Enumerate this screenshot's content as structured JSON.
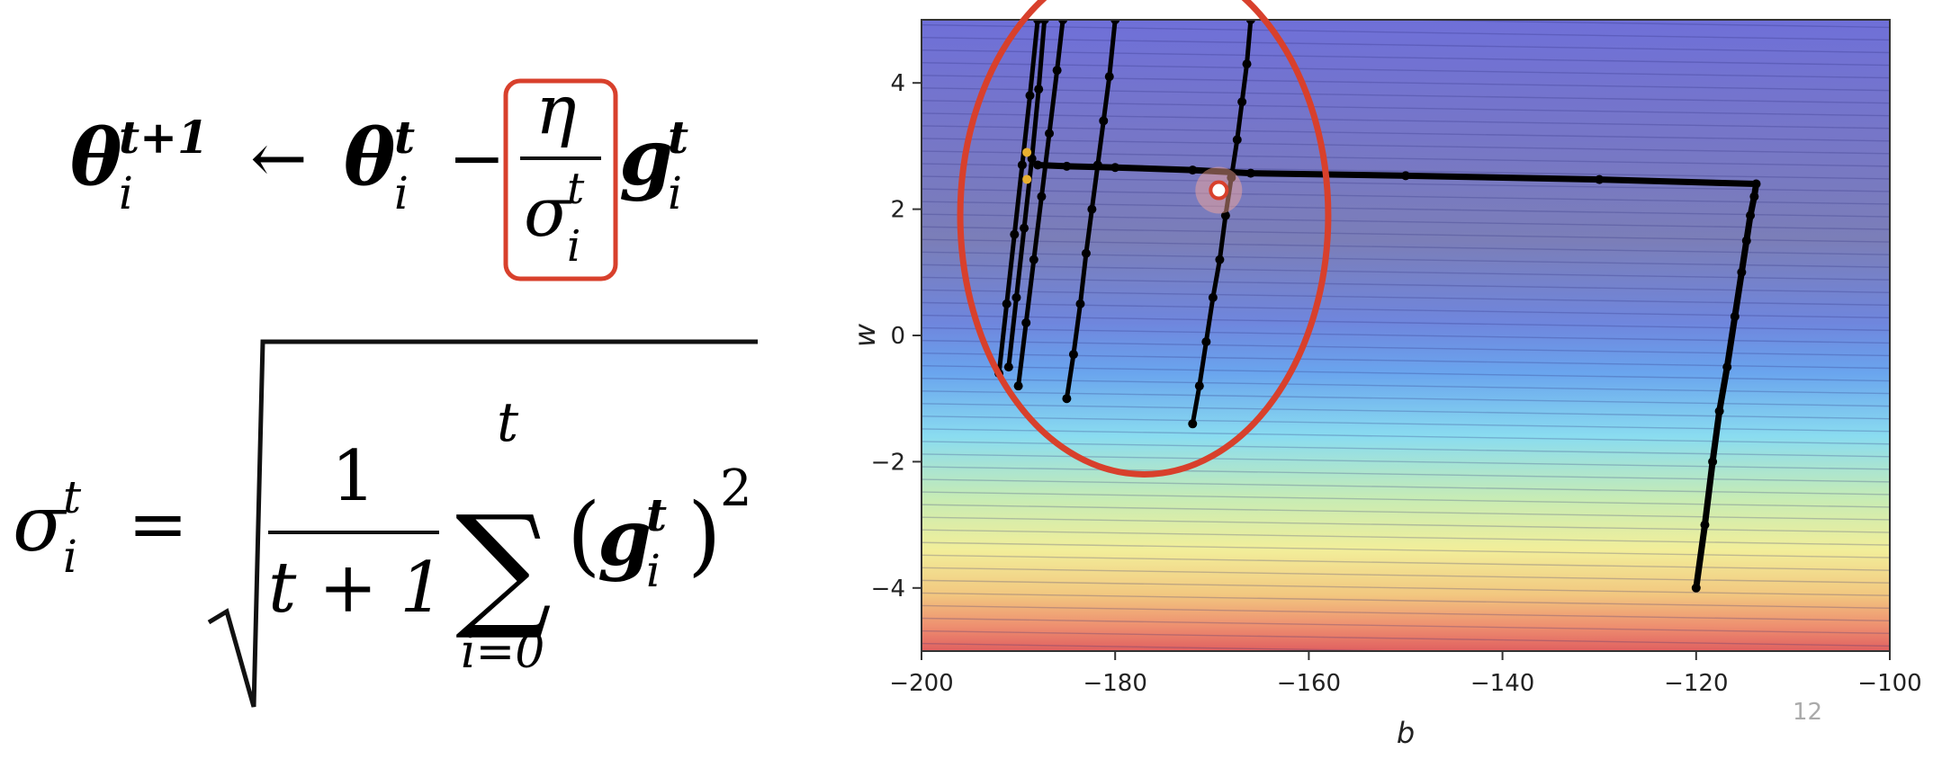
{
  "formula": {
    "theta": "θ",
    "arrow": "←",
    "minus": "−",
    "eta": "η",
    "sigma": "σ",
    "g": "g",
    "sub_i": "i",
    "sup_t": "t",
    "sup_t1": "t+1",
    "equals": "=",
    "one": "1",
    "t_plus_1": "t + 1",
    "sum": "∑",
    "sum_top": "t",
    "sum_bottom": "i=0",
    "lparen": "(",
    "rparen": ")",
    "square": "2"
  },
  "page_number": "12",
  "colors": {
    "highlight_red": "#d8402c",
    "path": "#000000",
    "tip_marker": "#e8b030"
  },
  "chart_data": {
    "type": "contour",
    "title": "",
    "xlabel": "b",
    "ylabel": "w",
    "xlim": [
      -200,
      -100
    ],
    "ylim": [
      -5,
      5
    ],
    "xticks": [
      -200,
      -180,
      -160,
      -140,
      -120,
      -100
    ],
    "yticks": [
      -4,
      -2,
      0,
      2,
      4
    ],
    "colormap": "jet",
    "contour_count": 50,
    "series": [
      {
        "values": [
          {
            "x": -120,
            "y": -4.0
          },
          {
            "x": -119.1,
            "y": -3.0
          },
          {
            "x": -118.3,
            "y": -2.0
          },
          {
            "x": -117.6,
            "y": -1.2
          },
          {
            "x": -116.8,
            "y": -0.5
          },
          {
            "x": -116.0,
            "y": 0.3
          },
          {
            "x": -115.3,
            "y": 1.0
          },
          {
            "x": -114.8,
            "y": 1.5
          },
          {
            "x": -114.4,
            "y": 1.9
          },
          {
            "x": -114.0,
            "y": 2.2
          },
          {
            "x": -113.8,
            "y": 2.4
          },
          {
            "x": -130,
            "y": 2.47
          },
          {
            "x": -150,
            "y": 2.53
          },
          {
            "x": -166,
            "y": 2.57
          },
          {
            "x": -172,
            "y": 2.62
          },
          {
            "x": -180,
            "y": 2.66
          },
          {
            "x": -185,
            "y": 2.68
          },
          {
            "x": -188,
            "y": 2.7
          }
        ]
      },
      {
        "values": [
          {
            "x": -172,
            "y": -1.4
          },
          {
            "x": -171.3,
            "y": -0.8
          },
          {
            "x": -170.6,
            "y": -0.1
          },
          {
            "x": -169.9,
            "y": 0.6
          },
          {
            "x": -169.2,
            "y": 1.2
          },
          {
            "x": -168.6,
            "y": 1.9
          },
          {
            "x": -168.0,
            "y": 2.5
          },
          {
            "x": -167.4,
            "y": 3.1
          },
          {
            "x": -166.9,
            "y": 3.7
          },
          {
            "x": -166.4,
            "y": 4.3
          },
          {
            "x": -166.0,
            "y": 5.0
          }
        ]
      },
      {
        "values": [
          {
            "x": -185,
            "y": -1.0
          },
          {
            "x": -184.3,
            "y": -0.3
          },
          {
            "x": -183.6,
            "y": 0.5
          },
          {
            "x": -183.0,
            "y": 1.3
          },
          {
            "x": -182.4,
            "y": 2.0
          },
          {
            "x": -181.8,
            "y": 2.7
          },
          {
            "x": -181.2,
            "y": 3.4
          },
          {
            "x": -180.6,
            "y": 4.1
          },
          {
            "x": -180.0,
            "y": 5.0
          }
        ]
      },
      {
        "values": [
          {
            "x": -190,
            "y": -0.8
          },
          {
            "x": -189.2,
            "y": 0.2
          },
          {
            "x": -188.4,
            "y": 1.2
          },
          {
            "x": -187.6,
            "y": 2.2
          },
          {
            "x": -186.8,
            "y": 3.2
          },
          {
            "x": -186.0,
            "y": 4.2
          },
          {
            "x": -185.4,
            "y": 5.0
          }
        ]
      },
      {
        "values": [
          {
            "x": -191,
            "y": -0.5
          },
          {
            "x": -190.2,
            "y": 0.6
          },
          {
            "x": -189.4,
            "y": 1.7
          },
          {
            "x": -188.6,
            "y": 2.8
          },
          {
            "x": -187.9,
            "y": 3.9
          },
          {
            "x": -187.3,
            "y": 5.0
          }
        ]
      },
      {
        "values": [
          {
            "x": -192,
            "y": -0.6
          },
          {
            "x": -191.2,
            "y": 0.5
          },
          {
            "x": -190.4,
            "y": 1.6
          },
          {
            "x": -189.6,
            "y": 2.7
          },
          {
            "x": -188.8,
            "y": 3.8
          },
          {
            "x": -188.0,
            "y": 5.0
          }
        ]
      }
    ],
    "annotations": [
      {
        "type": "marker",
        "x": -169.3,
        "y": 2.3
      },
      {
        "type": "ellipse",
        "cx": -177,
        "cy": 1.9,
        "rx": 19,
        "ry": 4.1
      }
    ]
  }
}
